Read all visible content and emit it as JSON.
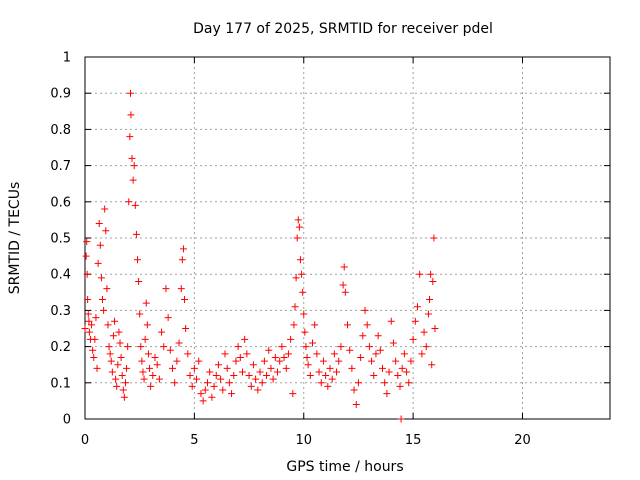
{
  "chart_data": {
    "type": "scatter",
    "title": "Day 177 of 2025, SRMTID for receiver pdel",
    "xlabel": "GPS time / hours",
    "ylabel": "SRMTID / TECUs",
    "xlim": [
      0,
      24
    ],
    "ylim": [
      0,
      1
    ],
    "xticks": [
      0,
      5,
      10,
      15,
      20
    ],
    "xtick_labels": [
      "0",
      "5",
      "10",
      "15",
      "20"
    ],
    "yticks": [
      0,
      0.1,
      0.2,
      0.3,
      0.4,
      0.5,
      0.6,
      0.7,
      0.8,
      0.9,
      1
    ],
    "ytick_labels": [
      "0",
      "0.1",
      "0.2",
      "0.3",
      "0.4",
      "0.5",
      "0.6",
      "0.7",
      "0.8",
      "0.9",
      "1"
    ],
    "grid": true,
    "marker": "+",
    "color": "#ff0000",
    "series": [
      {
        "name": "SRMTID",
        "points": [
          [
            0.0,
            0.25
          ],
          [
            0.05,
            0.45
          ],
          [
            0.08,
            0.49
          ],
          [
            0.1,
            0.4
          ],
          [
            0.12,
            0.33
          ],
          [
            0.15,
            0.29
          ],
          [
            0.18,
            0.27
          ],
          [
            0.2,
            0.24
          ],
          [
            0.25,
            0.22
          ],
          [
            0.3,
            0.26
          ],
          [
            0.35,
            0.19
          ],
          [
            0.4,
            0.17
          ],
          [
            0.45,
            0.22
          ],
          [
            0.5,
            0.28
          ],
          [
            0.55,
            0.14
          ],
          [
            0.6,
            0.43
          ],
          [
            0.65,
            0.54
          ],
          [
            0.7,
            0.48
          ],
          [
            0.75,
            0.39
          ],
          [
            0.8,
            0.33
          ],
          [
            0.85,
            0.3
          ],
          [
            0.9,
            0.58
          ],
          [
            0.95,
            0.52
          ],
          [
            1.0,
            0.36
          ],
          [
            1.05,
            0.26
          ],
          [
            1.1,
            0.2
          ],
          [
            1.15,
            0.18
          ],
          [
            1.2,
            0.16
          ],
          [
            1.25,
            0.13
          ],
          [
            1.3,
            0.23
          ],
          [
            1.35,
            0.27
          ],
          [
            1.4,
            0.11
          ],
          [
            1.45,
            0.09
          ],
          [
            1.5,
            0.15
          ],
          [
            1.55,
            0.24
          ],
          [
            1.6,
            0.21
          ],
          [
            1.65,
            0.17
          ],
          [
            1.7,
            0.12
          ],
          [
            1.75,
            0.08
          ],
          [
            1.8,
            0.06
          ],
          [
            1.85,
            0.1
          ],
          [
            1.9,
            0.14
          ],
          [
            1.95,
            0.2
          ],
          [
            2.0,
            0.6
          ],
          [
            2.05,
            0.78
          ],
          [
            2.08,
            0.9
          ],
          [
            2.1,
            0.84
          ],
          [
            2.15,
            0.72
          ],
          [
            2.2,
            0.66
          ],
          [
            2.25,
            0.7
          ],
          [
            2.3,
            0.59
          ],
          [
            2.35,
            0.51
          ],
          [
            2.4,
            0.44
          ],
          [
            2.45,
            0.38
          ],
          [
            2.5,
            0.29
          ],
          [
            2.55,
            0.2
          ],
          [
            2.6,
            0.16
          ],
          [
            2.65,
            0.13
          ],
          [
            2.7,
            0.11
          ],
          [
            2.75,
            0.22
          ],
          [
            2.8,
            0.32
          ],
          [
            2.85,
            0.26
          ],
          [
            2.9,
            0.18
          ],
          [
            2.95,
            0.14
          ],
          [
            3.0,
            0.09
          ],
          [
            3.1,
            0.12
          ],
          [
            3.2,
            0.17
          ],
          [
            3.3,
            0.15
          ],
          [
            3.4,
            0.11
          ],
          [
            3.5,
            0.24
          ],
          [
            3.6,
            0.2
          ],
          [
            3.7,
            0.36
          ],
          [
            3.8,
            0.28
          ],
          [
            3.9,
            0.19
          ],
          [
            4.0,
            0.14
          ],
          [
            4.1,
            0.1
          ],
          [
            4.2,
            0.16
          ],
          [
            4.3,
            0.21
          ],
          [
            4.4,
            0.36
          ],
          [
            4.45,
            0.44
          ],
          [
            4.5,
            0.47
          ],
          [
            4.55,
            0.33
          ],
          [
            4.6,
            0.25
          ],
          [
            4.7,
            0.18
          ],
          [
            4.8,
            0.12
          ],
          [
            4.9,
            0.09
          ],
          [
            5.0,
            0.14
          ],
          [
            5.1,
            0.11
          ],
          [
            5.2,
            0.16
          ],
          [
            5.3,
            0.07
          ],
          [
            5.4,
            0.05
          ],
          [
            5.5,
            0.08
          ],
          [
            5.6,
            0.1
          ],
          [
            5.7,
            0.13
          ],
          [
            5.8,
            0.06
          ],
          [
            5.9,
            0.09
          ],
          [
            6.0,
            0.12
          ],
          [
            6.1,
            0.15
          ],
          [
            6.2,
            0.11
          ],
          [
            6.3,
            0.08
          ],
          [
            6.4,
            0.18
          ],
          [
            6.5,
            0.14
          ],
          [
            6.6,
            0.1
          ],
          [
            6.7,
            0.07
          ],
          [
            6.8,
            0.12
          ],
          [
            6.9,
            0.16
          ],
          [
            7.0,
            0.2
          ],
          [
            7.1,
            0.17
          ],
          [
            7.2,
            0.13
          ],
          [
            7.3,
            0.22
          ],
          [
            7.4,
            0.18
          ],
          [
            7.5,
            0.12
          ],
          [
            7.6,
            0.09
          ],
          [
            7.7,
            0.15
          ],
          [
            7.8,
            0.11
          ],
          [
            7.9,
            0.08
          ],
          [
            8.0,
            0.13
          ],
          [
            8.1,
            0.1
          ],
          [
            8.2,
            0.16
          ],
          [
            8.3,
            0.12
          ],
          [
            8.4,
            0.19
          ],
          [
            8.5,
            0.14
          ],
          [
            8.6,
            0.11
          ],
          [
            8.7,
            0.17
          ],
          [
            8.8,
            0.13
          ],
          [
            8.9,
            0.16
          ],
          [
            9.0,
            0.2
          ],
          [
            9.1,
            0.17
          ],
          [
            9.2,
            0.14
          ],
          [
            9.3,
            0.18
          ],
          [
            9.4,
            0.22
          ],
          [
            9.5,
            0.07
          ],
          [
            9.55,
            0.26
          ],
          [
            9.6,
            0.31
          ],
          [
            9.65,
            0.39
          ],
          [
            9.7,
            0.5
          ],
          [
            9.75,
            0.55
          ],
          [
            9.8,
            0.53
          ],
          [
            9.85,
            0.44
          ],
          [
            9.9,
            0.4
          ],
          [
            9.95,
            0.35
          ],
          [
            10.0,
            0.29
          ],
          [
            10.05,
            0.24
          ],
          [
            10.1,
            0.2
          ],
          [
            10.15,
            0.17
          ],
          [
            10.2,
            0.15
          ],
          [
            10.3,
            0.12
          ],
          [
            10.4,
            0.21
          ],
          [
            10.5,
            0.26
          ],
          [
            10.6,
            0.18
          ],
          [
            10.7,
            0.13
          ],
          [
            10.8,
            0.1
          ],
          [
            10.9,
            0.16
          ],
          [
            11.0,
            0.12
          ],
          [
            11.1,
            0.09
          ],
          [
            11.2,
            0.14
          ],
          [
            11.3,
            0.11
          ],
          [
            11.4,
            0.18
          ],
          [
            11.5,
            0.13
          ],
          [
            11.6,
            0.16
          ],
          [
            11.7,
            0.2
          ],
          [
            11.8,
            0.37
          ],
          [
            11.85,
            0.42
          ],
          [
            11.9,
            0.35
          ],
          [
            12.0,
            0.26
          ],
          [
            12.1,
            0.19
          ],
          [
            12.2,
            0.14
          ],
          [
            12.3,
            0.08
          ],
          [
            12.4,
            0.04
          ],
          [
            12.5,
            0.1
          ],
          [
            12.6,
            0.17
          ],
          [
            12.7,
            0.23
          ],
          [
            12.8,
            0.3
          ],
          [
            12.9,
            0.26
          ],
          [
            13.0,
            0.2
          ],
          [
            13.1,
            0.16
          ],
          [
            13.2,
            0.12
          ],
          [
            13.3,
            0.18
          ],
          [
            13.4,
            0.23
          ],
          [
            13.5,
            0.19
          ],
          [
            13.6,
            0.14
          ],
          [
            13.7,
            0.1
          ],
          [
            13.8,
            0.07
          ],
          [
            13.9,
            0.13
          ],
          [
            14.0,
            0.27
          ],
          [
            14.1,
            0.21
          ],
          [
            14.2,
            0.16
          ],
          [
            14.3,
            0.12
          ],
          [
            14.4,
            0.09
          ],
          [
            14.45,
            0.0
          ],
          [
            14.5,
            0.14
          ],
          [
            14.6,
            0.18
          ],
          [
            14.7,
            0.13
          ],
          [
            14.8,
            0.1
          ],
          [
            14.9,
            0.16
          ],
          [
            15.0,
            0.22
          ],
          [
            15.1,
            0.27
          ],
          [
            15.2,
            0.31
          ],
          [
            15.3,
            0.4
          ],
          [
            15.4,
            0.18
          ],
          [
            15.5,
            0.24
          ],
          [
            15.6,
            0.2
          ],
          [
            15.7,
            0.29
          ],
          [
            15.75,
            0.33
          ],
          [
            15.8,
            0.4
          ],
          [
            15.85,
            0.15
          ],
          [
            15.9,
            0.38
          ],
          [
            15.95,
            0.5
          ],
          [
            16.0,
            0.25
          ]
        ]
      }
    ]
  }
}
